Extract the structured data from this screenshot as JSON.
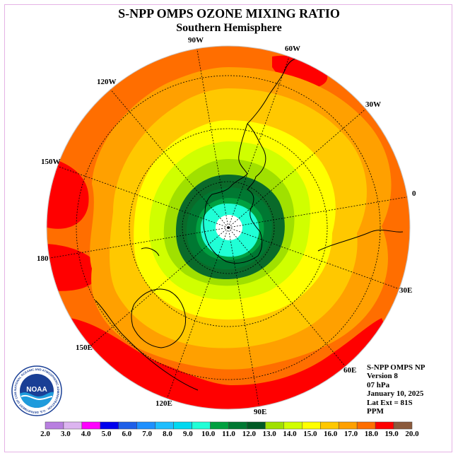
{
  "header": {
    "title": "S-NPP OMPS OZONE MIXING RATIO",
    "subtitle": "Southern Hemisphere"
  },
  "longitude_labels": [
    "90W",
    "60W",
    "30W",
    "0",
    "30E",
    "60E",
    "90E",
    "120E",
    "150E",
    "180",
    "150W",
    "120W"
  ],
  "info": {
    "product": "S-NPP OMPS NP",
    "version": "Version 8",
    "level": "07 hPa",
    "date": "January 10, 2025",
    "lat_ext": "Lat Ext = 81S",
    "units": "PPM"
  },
  "logo": {
    "text": "NOAA",
    "ring_text": "NATIONAL OCEANIC AND ATMOSPHERIC ADMINISTRATION · U.S. DEPARTMENT OF COMMERCE"
  },
  "colorbar": {
    "labels": [
      "2.0",
      "3.0",
      "4.0",
      "5.0",
      "6.0",
      "7.0",
      "8.0",
      "9.0",
      "10.0",
      "11.0",
      "12.0",
      "13.0",
      "14.0",
      "15.0",
      "16.0",
      "17.0",
      "18.0",
      "19.0",
      "20.0"
    ],
    "colors": [
      "#b87fe0",
      "#dcb4f0",
      "#ff00ff",
      "#0000ee",
      "#1e5fe8",
      "#1e90ff",
      "#1ebeff",
      "#00d8f0",
      "#20ffd6",
      "#00a040",
      "#007832",
      "#005a24",
      "#a0e000",
      "#d0ff00",
      "#ffff00",
      "#ffc800",
      "#ffa000",
      "#ff6e00",
      "#ff0000",
      "#8b5a3c"
    ]
  },
  "map_colors": {
    "center": "#ffffff",
    "level9": "#20ffd6",
    "level10": "#00a040",
    "level11": "#007832",
    "level12": "#0a6a2a",
    "level13": "#a0e000",
    "level14": "#d0ff00",
    "level15": "#ffff00",
    "level16": "#ffc800",
    "level17": "#ffa000",
    "level18": "#ff6e00",
    "level19": "#ff0000"
  }
}
